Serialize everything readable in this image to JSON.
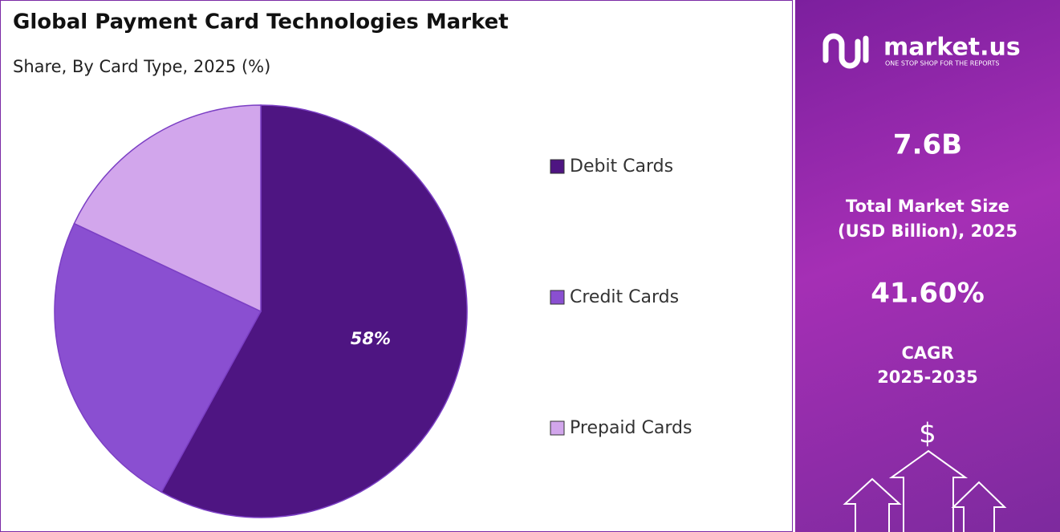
{
  "chart_data": {
    "type": "pie",
    "title": "Global Payment Card Technologies Market",
    "subtitle": "Share, By Card Type, 2025 (%)",
    "categories": [
      "Debit Cards",
      "Credit Cards",
      "Prepaid Cards"
    ],
    "values": [
      58,
      24,
      18
    ],
    "value_labels": [
      "58%",
      null,
      null
    ],
    "colors": [
      "#4e1582",
      "#8a4fd1",
      "#d2a6ec"
    ],
    "legend": "right"
  },
  "panel": {
    "brand": "market.us",
    "tagline": "ONE STOP SHOP FOR THE REPORTS",
    "market_size": "7.6B",
    "market_size_label": [
      "Total Market Size",
      "(USD Billion), 2025"
    ],
    "cagr": "41.60%",
    "cagr_label": [
      "CAGR",
      "2025-2035"
    ],
    "icon": "$"
  }
}
